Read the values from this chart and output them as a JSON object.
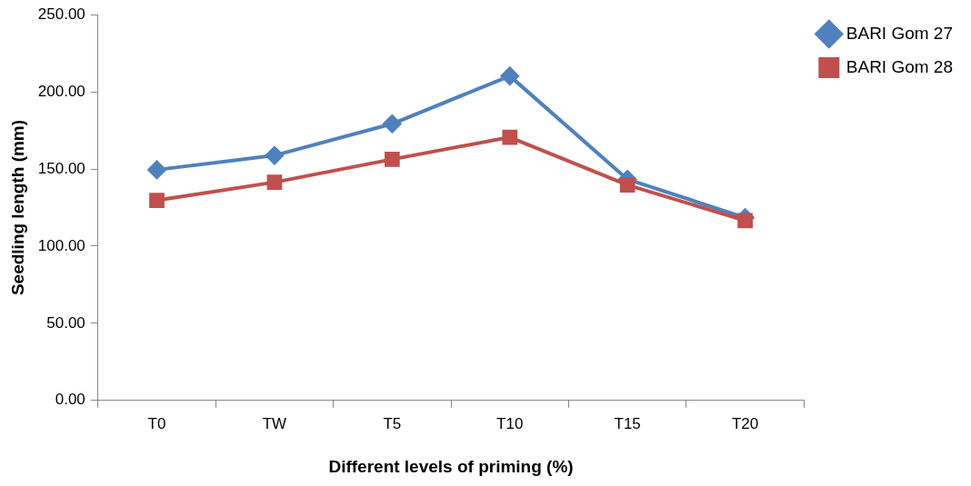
{
  "chart_data": {
    "type": "line",
    "xlabel": "Different levels of priming (%)",
    "ylabel": "Seedling length (mm)",
    "categories": [
      "T0",
      "TW",
      "T5",
      "T10",
      "T15",
      "T20"
    ],
    "series": [
      {
        "name": "BARI Gom 27",
        "color": "#4f81bd",
        "marker": "diamond",
        "values": [
          149.5,
          158.8,
          179.3,
          210.3,
          143.3,
          118.5
        ]
      },
      {
        "name": "BARI Gom 28",
        "color": "#c0504d",
        "marker": "square",
        "values": [
          129.7,
          141.4,
          156.3,
          170.6,
          139.6,
          116.6
        ]
      }
    ],
    "ylim": [
      0,
      250
    ],
    "yticks": [
      {
        "value": 0,
        "label": "0.00"
      },
      {
        "value": 50,
        "label": "50.00"
      },
      {
        "value": 100,
        "label": "100.00"
      },
      {
        "value": 150,
        "label": "150.00"
      },
      {
        "value": 200,
        "label": "200.00"
      },
      {
        "value": 250,
        "label": "250.00"
      }
    ],
    "grid": false,
    "legend": "right",
    "line_style": "solid"
  }
}
